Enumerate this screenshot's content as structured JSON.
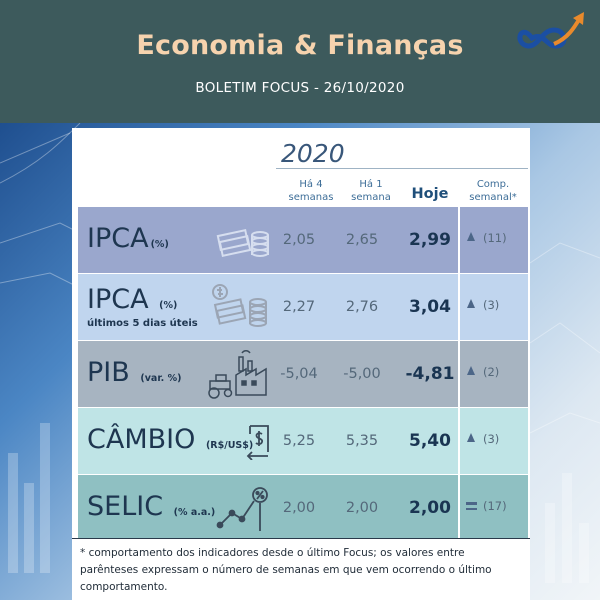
{
  "header": {
    "title": "Economia & Finanças",
    "subtitle": "BOLETIM FOCUS  - 26/10/2020",
    "logo_icon": "infinity-arrow-logo-icon",
    "colors": {
      "bg": "#3d5a5c",
      "title": "#f6d3ae"
    }
  },
  "table": {
    "year": "2020",
    "columns": {
      "ha4": [
        "Há 4",
        "semanas"
      ],
      "ha1": [
        "Há 1",
        "semana"
      ],
      "hoje": "Hoje",
      "comp": [
        "Comp.",
        "semanal*"
      ]
    },
    "rows": [
      {
        "name": "IPCA",
        "unit": "(%)",
        "note": "",
        "icon": "money-coins-icon",
        "ha4": "2,05",
        "ha1": "2,65",
        "hoje": "2,99",
        "trend": "up",
        "comp": "(11)",
        "color": "#9aa7cd"
      },
      {
        "name": "IPCA",
        "unit": "(%)",
        "note": "últimos 5 dias úteis",
        "icon": "money-coins-dollar-icon",
        "ha4": "2,27",
        "ha1": "2,76",
        "hoje": "3,04",
        "trend": "up",
        "comp": "(3)",
        "color": "#c0d5ee"
      },
      {
        "name": "PIB",
        "unit": "(var. %)",
        "note": "",
        "icon": "factory-tractor-icon",
        "ha4": "-5,04",
        "ha1": "-5,00",
        "hoje": "-4,81",
        "trend": "up",
        "comp": "(2)",
        "color": "#a7b4c1"
      },
      {
        "name": "CÂMBIO",
        "unit": "(R$/US$)",
        "note": "",
        "icon": "currency-exchange-icon",
        "ha4": "5,25",
        "ha1": "5,35",
        "hoje": "5,40",
        "trend": "up",
        "comp": "(3)",
        "color": "#bfe4e6"
      },
      {
        "name": "SELIC",
        "unit": "(% a.a.)",
        "note": "",
        "icon": "interest-chart-icon",
        "ha4": "2,00",
        "ha1": "2,00",
        "hoje": "2,00",
        "trend": "equal",
        "comp": "(17)",
        "color": "#8fc0c2"
      }
    ]
  },
  "footer": {
    "text": "* comportamento dos indicadores desde o último Focus; os valores entre parênteses expressam o número de semanas em que vem ocorrendo o último comportamento."
  }
}
